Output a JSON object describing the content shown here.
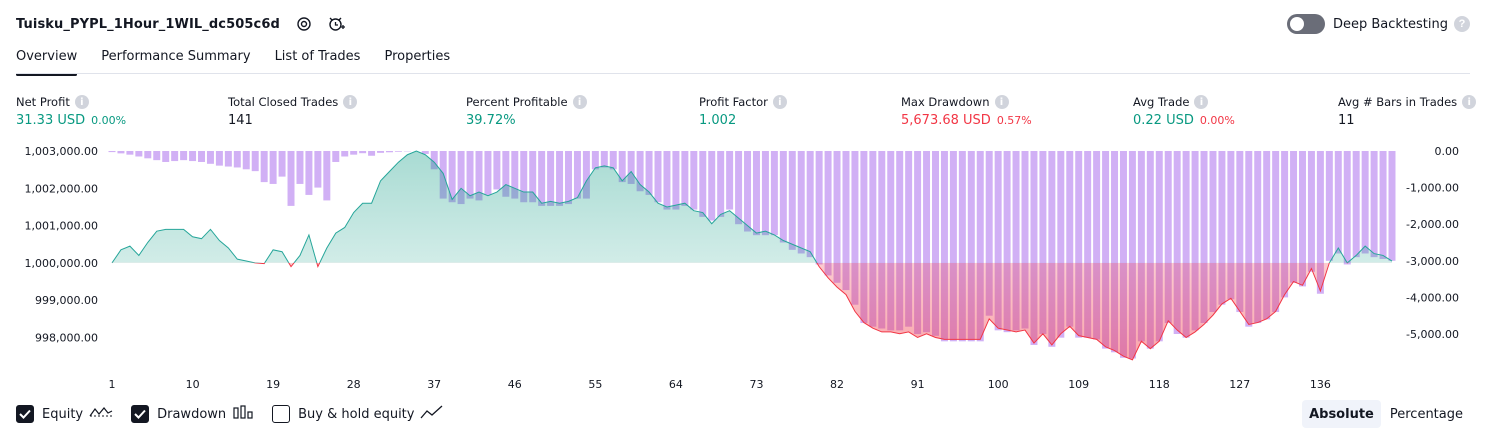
{
  "header": {
    "title": "Tuisku_PYPL_1Hour_1WIL_dc505c6d"
  },
  "deep_backtesting": {
    "label": "Deep Backtesting",
    "enabled": false
  },
  "tabs": [
    {
      "label": "Overview",
      "active": true
    },
    {
      "label": "Performance Summary",
      "active": false
    },
    {
      "label": "List of Trades",
      "active": false
    },
    {
      "label": "Properties",
      "active": false
    }
  ],
  "stats": {
    "net_profit": {
      "label": "Net Profit",
      "value": "31.33 USD",
      "sub": "0.00%"
    },
    "total_closed_trades": {
      "label": "Total Closed Trades",
      "value": "141"
    },
    "percent_profitable": {
      "label": "Percent Profitable",
      "value": "39.72%"
    },
    "profit_factor": {
      "label": "Profit Factor",
      "value": "1.002"
    },
    "max_drawdown": {
      "label": "Max Drawdown",
      "value": "5,673.68 USD",
      "sub": "0.57%"
    },
    "avg_trade": {
      "label": "Avg Trade",
      "value": "0.22 USD",
      "sub": "0.00%"
    },
    "avg_bars": {
      "label": "Avg # Bars in Trades",
      "value": "11"
    }
  },
  "legend": {
    "equity": "Equity",
    "drawdown": "Drawdown",
    "buy_hold": "Buy & hold equity"
  },
  "mode": {
    "absolute": "Absolute",
    "percentage": "Percentage"
  },
  "colors": {
    "profit": "#089981",
    "loss": "#f23645",
    "drawdown_bar": "#d1b0f5",
    "equity_line": "#26a69a"
  },
  "chart_data": {
    "type": "line",
    "baseline": 1000000,
    "left_axis": {
      "ticks": [
        "1,003,000.00",
        "1,002,000.00",
        "1,001,000.00",
        "1,000,000.00",
        "999,000.00",
        "998,000.00"
      ],
      "tick_values": [
        1003000,
        1002000,
        1001000,
        1000000,
        999000,
        998000
      ]
    },
    "right_axis": {
      "ticks": [
        "0.00",
        "-1,000.00",
        "-2,000.00",
        "-3,000.00",
        "-4,000.00",
        "-5,000.00"
      ],
      "tick_values": [
        0,
        -1000,
        -2000,
        -3000,
        -4000,
        -5000
      ]
    },
    "x_ticks": [
      1,
      10,
      19,
      28,
      37,
      46,
      55,
      64,
      73,
      82,
      91,
      100,
      109,
      118,
      127,
      136
    ],
    "equity_key_points": [
      [
        1,
        1000000
      ],
      [
        2,
        1000350
      ],
      [
        3,
        1000450
      ],
      [
        4,
        1000200
      ],
      [
        5,
        1000550
      ],
      [
        6,
        1000850
      ],
      [
        7,
        1000900
      ],
      [
        9,
        1000900
      ],
      [
        10,
        1000700
      ],
      [
        11,
        1000650
      ],
      [
        12,
        1000900
      ],
      [
        13,
        1000600
      ],
      [
        14,
        1000400
      ],
      [
        15,
        1000100
      ],
      [
        16,
        1000050
      ],
      [
        17,
        1000000
      ],
      [
        18,
        999980
      ],
      [
        19,
        1000350
      ],
      [
        20,
        1000300
      ],
      [
        21,
        999900
      ],
      [
        22,
        1000200
      ],
      [
        23,
        1000750
      ],
      [
        24,
        999900
      ],
      [
        25,
        1000400
      ],
      [
        26,
        1000800
      ],
      [
        27,
        1000950
      ],
      [
        28,
        1001350
      ],
      [
        29,
        1001600
      ],
      [
        30,
        1001600
      ],
      [
        31,
        1002200
      ],
      [
        32,
        1002450
      ],
      [
        33,
        1002700
      ],
      [
        34,
        1002900
      ],
      [
        35,
        1003000
      ],
      [
        36,
        1002900
      ],
      [
        37,
        1002700
      ],
      [
        38,
        1002400
      ],
      [
        39,
        1001700
      ],
      [
        40,
        1002000
      ],
      [
        41,
        1001800
      ],
      [
        42,
        1001900
      ],
      [
        43,
        1001800
      ],
      [
        44,
        1001900
      ],
      [
        45,
        1002100
      ],
      [
        46,
        1002000
      ],
      [
        47,
        1001900
      ],
      [
        48,
        1001900
      ],
      [
        49,
        1001600
      ],
      [
        50,
        1001650
      ],
      [
        51,
        1001600
      ],
      [
        52,
        1001650
      ],
      [
        53,
        1001750
      ],
      [
        54,
        1002200
      ],
      [
        55,
        1002550
      ],
      [
        56,
        1002600
      ],
      [
        57,
        1002550
      ],
      [
        58,
        1002200
      ],
      [
        59,
        1002450
      ],
      [
        60,
        1002100
      ],
      [
        61,
        1001900
      ],
      [
        62,
        1001600
      ],
      [
        63,
        1001500
      ],
      [
        64,
        1001550
      ],
      [
        65,
        1001600
      ],
      [
        66,
        1001400
      ],
      [
        67,
        1001350
      ],
      [
        68,
        1001050
      ],
      [
        69,
        1001300
      ],
      [
        70,
        1001400
      ],
      [
        71,
        1001200
      ],
      [
        72,
        1001000
      ],
      [
        73,
        1000800
      ],
      [
        74,
        1000850
      ],
      [
        75,
        1000750
      ],
      [
        76,
        1000600
      ],
      [
        77,
        1000500
      ],
      [
        78,
        1000400
      ],
      [
        79,
        1000300
      ],
      [
        80,
        999900
      ],
      [
        81,
        999600
      ],
      [
        82,
        999350
      ],
      [
        83,
        999150
      ],
      [
        84,
        998700
      ],
      [
        85,
        998400
      ],
      [
        86,
        998250
      ],
      [
        87,
        998150
      ],
      [
        88,
        998150
      ],
      [
        89,
        998100
      ],
      [
        90,
        998150
      ],
      [
        91,
        998000
      ],
      [
        92,
        998100
      ],
      [
        93,
        998000
      ],
      [
        94,
        997950
      ],
      [
        95,
        997950
      ],
      [
        96,
        997950
      ],
      [
        97,
        997950
      ],
      [
        98,
        997950
      ],
      [
        99,
        998500
      ],
      [
        100,
        998250
      ],
      [
        101,
        998200
      ],
      [
        102,
        998150
      ],
      [
        103,
        998200
      ],
      [
        104,
        997850
      ],
      [
        105,
        998100
      ],
      [
        106,
        997800
      ],
      [
        107,
        998100
      ],
      [
        108,
        998300
      ],
      [
        109,
        998050
      ],
      [
        110,
        998000
      ],
      [
        111,
        997950
      ],
      [
        112,
        997750
      ],
      [
        113,
        997650
      ],
      [
        114,
        997500
      ],
      [
        115,
        997400
      ],
      [
        116,
        997900
      ],
      [
        117,
        997700
      ],
      [
        118,
        997900
      ],
      [
        119,
        998450
      ],
      [
        120,
        998200
      ],
      [
        121,
        998000
      ],
      [
        122,
        998150
      ],
      [
        123,
        998350
      ],
      [
        124,
        998600
      ],
      [
        125,
        998900
      ],
      [
        126,
        999050
      ],
      [
        127,
        998700
      ],
      [
        128,
        998350
      ],
      [
        129,
        998400
      ],
      [
        130,
        998500
      ],
      [
        131,
        998700
      ],
      [
        132,
        999150
      ],
      [
        133,
        999500
      ],
      [
        134,
        999400
      ],
      [
        135,
        999850
      ],
      [
        136,
        999250
      ],
      [
        137,
        1000000
      ],
      [
        138,
        1000400
      ],
      [
        139,
        1000000
      ],
      [
        140,
        1000200
      ],
      [
        141,
        1000450
      ],
      [
        142,
        1000250
      ],
      [
        143,
        1000200
      ],
      [
        144,
        1000050
      ]
    ],
    "drawdown_key_points": [
      [
        1,
        -30
      ],
      [
        3,
        -100
      ],
      [
        5,
        -200
      ],
      [
        7,
        -300
      ],
      [
        9,
        -250
      ],
      [
        11,
        -300
      ],
      [
        13,
        -400
      ],
      [
        15,
        -450
      ],
      [
        17,
        -550
      ],
      [
        18,
        -850
      ],
      [
        19,
        -900
      ],
      [
        20,
        -700
      ],
      [
        21,
        -1500
      ],
      [
        22,
        -900
      ],
      [
        23,
        -1200
      ],
      [
        24,
        -1000
      ],
      [
        25,
        -1350
      ],
      [
        26,
        -300
      ],
      [
        27,
        -150
      ],
      [
        28,
        -100
      ],
      [
        29,
        -60
      ],
      [
        30,
        -130
      ],
      [
        31,
        -50
      ],
      [
        33,
        -20
      ],
      [
        35,
        0
      ],
      [
        36,
        -80
      ],
      [
        37,
        -500
      ],
      [
        38,
        -1300
      ],
      [
        39,
        -1400
      ],
      [
        40,
        -1450
      ],
      [
        41,
        -1300
      ],
      [
        42,
        -1350
      ],
      [
        43,
        -1200
      ],
      [
        44,
        -1050
      ],
      [
        45,
        -1250
      ],
      [
        46,
        -1300
      ],
      [
        47,
        -1400
      ],
      [
        48,
        -1400
      ],
      [
        49,
        -1500
      ],
      [
        50,
        -1500
      ],
      [
        51,
        -1500
      ],
      [
        52,
        -1450
      ],
      [
        53,
        -1300
      ],
      [
        54,
        -1300
      ],
      [
        55,
        -500
      ],
      [
        56,
        -450
      ],
      [
        57,
        -500
      ],
      [
        58,
        -850
      ],
      [
        59,
        -900
      ],
      [
        60,
        -1100
      ],
      [
        61,
        -1200
      ],
      [
        62,
        -1400
      ],
      [
        63,
        -1600
      ],
      [
        64,
        -1600
      ],
      [
        65,
        -1500
      ],
      [
        66,
        -1600
      ],
      [
        67,
        -1800
      ],
      [
        68,
        -1900
      ],
      [
        69,
        -1800
      ],
      [
        70,
        -1600
      ],
      [
        71,
        -2000
      ],
      [
        72,
        -2200
      ],
      [
        73,
        -2300
      ],
      [
        74,
        -2300
      ],
      [
        75,
        -2300
      ],
      [
        76,
        -2500
      ],
      [
        77,
        -2700
      ],
      [
        78,
        -2800
      ],
      [
        79,
        -2900
      ],
      [
        80,
        -3100
      ],
      [
        81,
        -3400
      ],
      [
        82,
        -3600
      ],
      [
        83,
        -3800
      ],
      [
        84,
        -4200
      ],
      [
        85,
        -4700
      ],
      [
        86,
        -4800
      ],
      [
        87,
        -4850
      ],
      [
        88,
        -4900
      ],
      [
        89,
        -4900
      ],
      [
        90,
        -4800
      ],
      [
        91,
        -5000
      ],
      [
        92,
        -4950
      ],
      [
        93,
        -5050
      ],
      [
        94,
        -5200
      ],
      [
        95,
        -5200
      ],
      [
        96,
        -5200
      ],
      [
        97,
        -5200
      ],
      [
        98,
        -5200
      ],
      [
        99,
        -4500
      ],
      [
        100,
        -4900
      ],
      [
        101,
        -4950
      ],
      [
        102,
        -4900
      ],
      [
        103,
        -4850
      ],
      [
        104,
        -5300
      ],
      [
        105,
        -5000
      ],
      [
        106,
        -5350
      ],
      [
        107,
        -5100
      ],
      [
        108,
        -4800
      ],
      [
        109,
        -5100
      ],
      [
        110,
        -5100
      ],
      [
        111,
        -5150
      ],
      [
        112,
        -5400
      ],
      [
        113,
        -5500
      ],
      [
        114,
        -5650
      ],
      [
        115,
        -5670
      ],
      [
        116,
        -5200
      ],
      [
        117,
        -5400
      ],
      [
        118,
        -5200
      ],
      [
        119,
        -4700
      ],
      [
        120,
        -5000
      ],
      [
        121,
        -5100
      ],
      [
        122,
        -4900
      ],
      [
        123,
        -4700
      ],
      [
        124,
        -4400
      ],
      [
        125,
        -4200
      ],
      [
        126,
        -4050
      ],
      [
        127,
        -4400
      ],
      [
        128,
        -4800
      ],
      [
        129,
        -4700
      ],
      [
        130,
        -4600
      ],
      [
        131,
        -4400
      ],
      [
        132,
        -4000
      ],
      [
        133,
        -3600
      ],
      [
        134,
        -3700
      ],
      [
        135,
        -3300
      ],
      [
        136,
        -3900
      ],
      [
        137,
        -3000
      ],
      [
        138,
        -2800
      ],
      [
        139,
        -3100
      ],
      [
        140,
        -2900
      ],
      [
        141,
        -2800
      ],
      [
        142,
        -2900
      ],
      [
        143,
        -2950
      ],
      [
        144,
        -3000
      ]
    ]
  }
}
